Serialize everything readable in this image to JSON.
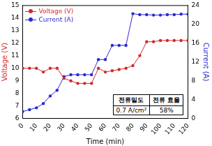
{
  "chart_data": {
    "type": "line",
    "x_label": "Time (min)",
    "y_label": "Voltage (V)",
    "y2_label": "Current (A)",
    "x": [
      0,
      5,
      10,
      15,
      20,
      25,
      30,
      35,
      40,
      45,
      50,
      55,
      60,
      65,
      70,
      75,
      80,
      85,
      90,
      95,
      100,
      105,
      110,
      115,
      120
    ],
    "series": [
      {
        "name": "Voltage (V)",
        "color": "#d42a2a",
        "marker": "circle",
        "line_style": "solid",
        "values": [
          10.0,
          10.0,
          10.0,
          9.7,
          10.0,
          10.0,
          9.2,
          9.0,
          8.8,
          8.8,
          8.8,
          10.0,
          9.7,
          9.8,
          9.9,
          10.0,
          10.2,
          11.0,
          12.1,
          12.1,
          12.2,
          12.2,
          12.2,
          12.2,
          12.2
        ]
      },
      {
        "name": "Current (A)",
        "color": "#2a2ad4",
        "marker": "circle",
        "line_style": "solid",
        "axis": "y2",
        "values": [
          1.5,
          1.9,
          2.3,
          3.2,
          4.8,
          6.0,
          8.9,
          9.3,
          9.3,
          9.3,
          9.3,
          12.5,
          12.5,
          15.5,
          15.5,
          15.5,
          22.2,
          22.0,
          22.0,
          21.9,
          21.9,
          22.0,
          22.0,
          22.1,
          22.1
        ]
      }
    ],
    "xlim": [
      0,
      120
    ],
    "xticks": [
      0,
      10,
      20,
      30,
      40,
      50,
      60,
      70,
      80,
      90,
      100,
      110,
      120
    ],
    "ylim": [
      6,
      15
    ],
    "yticks": [
      6,
      7,
      8,
      9,
      10,
      11,
      12,
      13,
      14,
      15
    ],
    "y2lim": [
      0,
      24
    ],
    "y2ticks": [
      0,
      4,
      8,
      12,
      16,
      20,
      24
    ],
    "grid": false,
    "legend": "upper left",
    "table": {
      "rows": [
        [
          "전류밀도",
          "전류 효율"
        ],
        [
          "0.7 A/cm²",
          "58%"
        ]
      ]
    }
  }
}
